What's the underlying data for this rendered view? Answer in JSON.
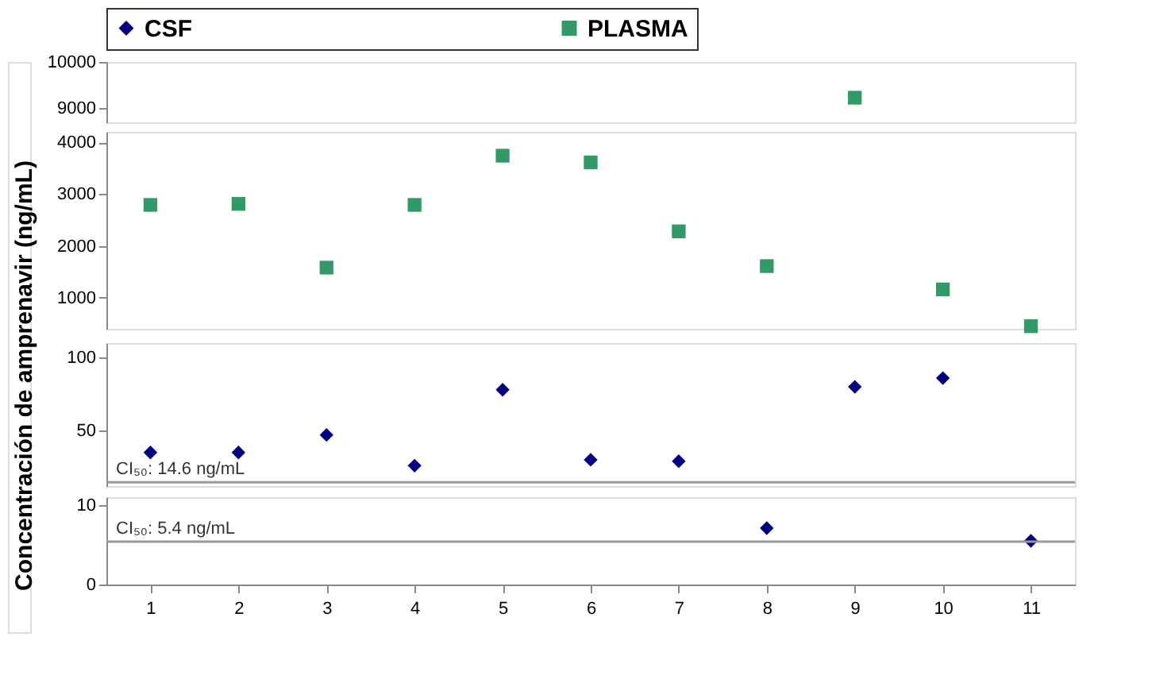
{
  "chart_data": [
    {
      "type": "scatter",
      "categories": [
        "1",
        "2",
        "3",
        "4",
        "5",
        "6",
        "7",
        "8",
        "9",
        "10",
        "11"
      ],
      "ylim": [
        8700,
        10000
      ],
      "yticks": [
        9000,
        10000
      ],
      "tick_labels": "y",
      "legend": "top",
      "grid": false,
      "series": [
        {
          "name": "CSF",
          "color": "#000080",
          "marker": "diamond",
          "values": [
            null,
            null,
            null,
            null,
            null,
            null,
            null,
            null,
            null,
            null,
            null
          ]
        },
        {
          "name": "PLASMA",
          "color": "#339966",
          "marker": "square",
          "values": [
            null,
            null,
            null,
            null,
            null,
            null,
            null,
            null,
            9230,
            null,
            null
          ]
        }
      ]
    },
    {
      "type": "scatter",
      "categories": [
        "1",
        "2",
        "3",
        "4",
        "5",
        "6",
        "7",
        "8",
        "9",
        "10",
        "11"
      ],
      "ylim": [
        400,
        4200
      ],
      "yticks": [
        1000,
        2000,
        3000,
        4000
      ],
      "tick_labels": "y",
      "grid": false,
      "ylabel": "Concentración de amprenavir (ng/mL)",
      "series": [
        {
          "color": "#000080",
          "marker": "diamond",
          "values": [
            null,
            null,
            null,
            null,
            null,
            null,
            null,
            null,
            null,
            null,
            null
          ]
        },
        {
          "color": "#339966",
          "marker": "square",
          "values": [
            2790,
            2810,
            1580,
            2790,
            3740,
            3610,
            2280,
            1610,
            null,
            1160,
            450
          ]
        }
      ]
    },
    {
      "type": "scatter",
      "categories": [
        "1",
        "2",
        "3",
        "4",
        "5",
        "6",
        "7",
        "8",
        "9",
        "10",
        "11"
      ],
      "ylim": [
        12,
        110
      ],
      "yticks": [
        50,
        100
      ],
      "tick_labels": "y",
      "grid": false,
      "ref_lines": [
        {
          "axis": "y",
          "value": 14.6,
          "label": "CI₅₀: 14.6 ng/mL",
          "color": "#999999"
        }
      ],
      "series": [
        {
          "color": "#000080",
          "marker": "diamond",
          "values": [
            35,
            35,
            47,
            26,
            78,
            30,
            29,
            null,
            80,
            86,
            null
          ]
        },
        {
          "color": "#339966",
          "marker": "square",
          "values": [
            null,
            null,
            null,
            null,
            null,
            null,
            null,
            null,
            null,
            null,
            null
          ]
        }
      ]
    },
    {
      "type": "scatter",
      "categories": [
        "1",
        "2",
        "3",
        "4",
        "5",
        "6",
        "7",
        "8",
        "9",
        "10",
        "11"
      ],
      "ylim": [
        0,
        11
      ],
      "yticks": [
        0,
        10
      ],
      "grid": false,
      "ref_lines": [
        {
          "axis": "y",
          "value": 5.4,
          "label": "CI₅₀: 5.4 ng/mL",
          "color": "#999999"
        }
      ],
      "series": [
        {
          "color": "#000080",
          "marker": "diamond",
          "values": [
            null,
            null,
            null,
            null,
            null,
            null,
            null,
            7.1,
            null,
            null,
            5.5
          ]
        },
        {
          "color": "#339966",
          "marker": "square",
          "values": [
            null,
            null,
            null,
            null,
            null,
            null,
            null,
            null,
            null,
            null,
            null
          ]
        }
      ]
    }
  ]
}
